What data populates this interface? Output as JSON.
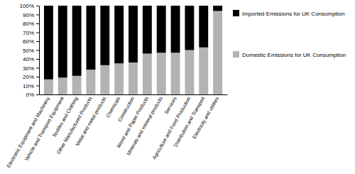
{
  "chart_data": {
    "type": "bar",
    "stacked": true,
    "grid": false,
    "legend": "right",
    "categories": [
      "Electronic Equipment and Machinery",
      "Vehicle and Transport Equipment",
      "Textiles and Clothing",
      "Other Manufactured Products",
      "Metal and metal products",
      "Chemicals",
      "Construction",
      "Wood and Paper Products",
      "Minerals and mineral products",
      "Services",
      "Agriculture and Food Production",
      "Distribution and Transport",
      "Electricity and utilities"
    ],
    "series": [
      {
        "name": "Domestic Emissions for UK Consumption",
        "color": "#b3b3b3",
        "values": [
          17,
          19,
          21,
          28,
          33,
          35,
          36,
          46,
          47,
          47,
          50,
          53,
          94
        ]
      },
      {
        "name": "Imported Emissions for UK Consumption",
        "color": "#000000",
        "values": [
          83,
          81,
          79,
          72,
          67,
          65,
          64,
          54,
          53,
          53,
          50,
          47,
          6
        ]
      }
    ],
    "ylim": [
      0,
      100
    ],
    "yticks": [
      {
        "value": 0,
        "label": "0%"
      },
      {
        "value": 10,
        "label": "10%"
      },
      {
        "value": 20,
        "label": "20%"
      },
      {
        "value": 30,
        "label": "30%"
      },
      {
        "value": 40,
        "label": "40%"
      },
      {
        "value": 50,
        "label": "50%"
      },
      {
        "value": 60,
        "label": "60%"
      },
      {
        "value": 70,
        "label": "70%"
      },
      {
        "value": 80,
        "label": "80%"
      },
      {
        "value": 90,
        "label": "90%"
      },
      {
        "value": 100,
        "label": "100%"
      }
    ]
  }
}
